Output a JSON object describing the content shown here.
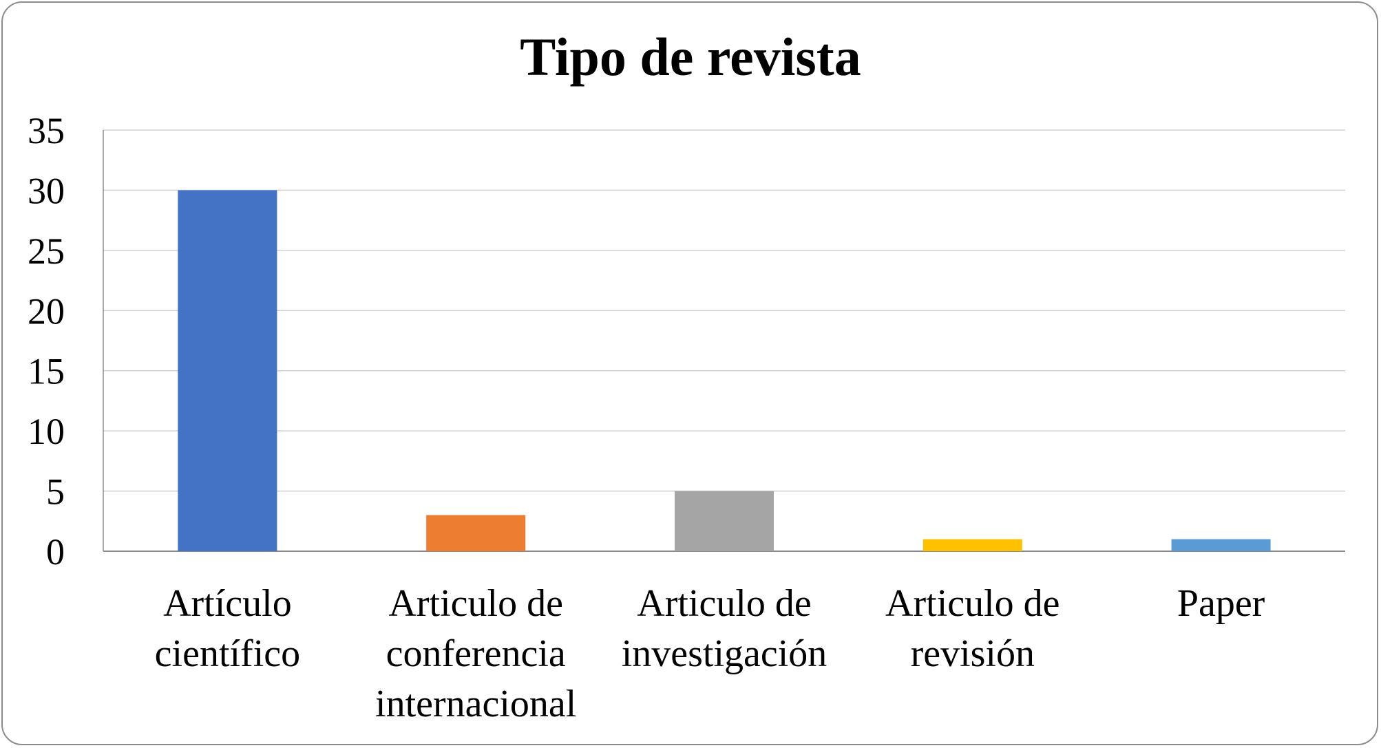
{
  "chart_data": {
    "type": "bar",
    "title": "Tipo de revista",
    "xlabel": "",
    "ylabel": "",
    "categories": [
      [
        "Artículo",
        "científico"
      ],
      [
        "Articulo de",
        "conferencia",
        "internacional"
      ],
      [
        "Articulo de",
        "investigación"
      ],
      [
        "Articulo de",
        "revisión"
      ],
      [
        "Paper"
      ]
    ],
    "values": [
      30,
      3,
      5,
      1,
      1
    ],
    "colors": [
      "#4472c4",
      "#ed7d31",
      "#a5a5a5",
      "#ffc000",
      "#5b9bd5"
    ],
    "ylim": [
      0,
      35
    ],
    "yticks": [
      0,
      5,
      10,
      15,
      20,
      25,
      30,
      35
    ],
    "grid": true,
    "legend": "none"
  }
}
